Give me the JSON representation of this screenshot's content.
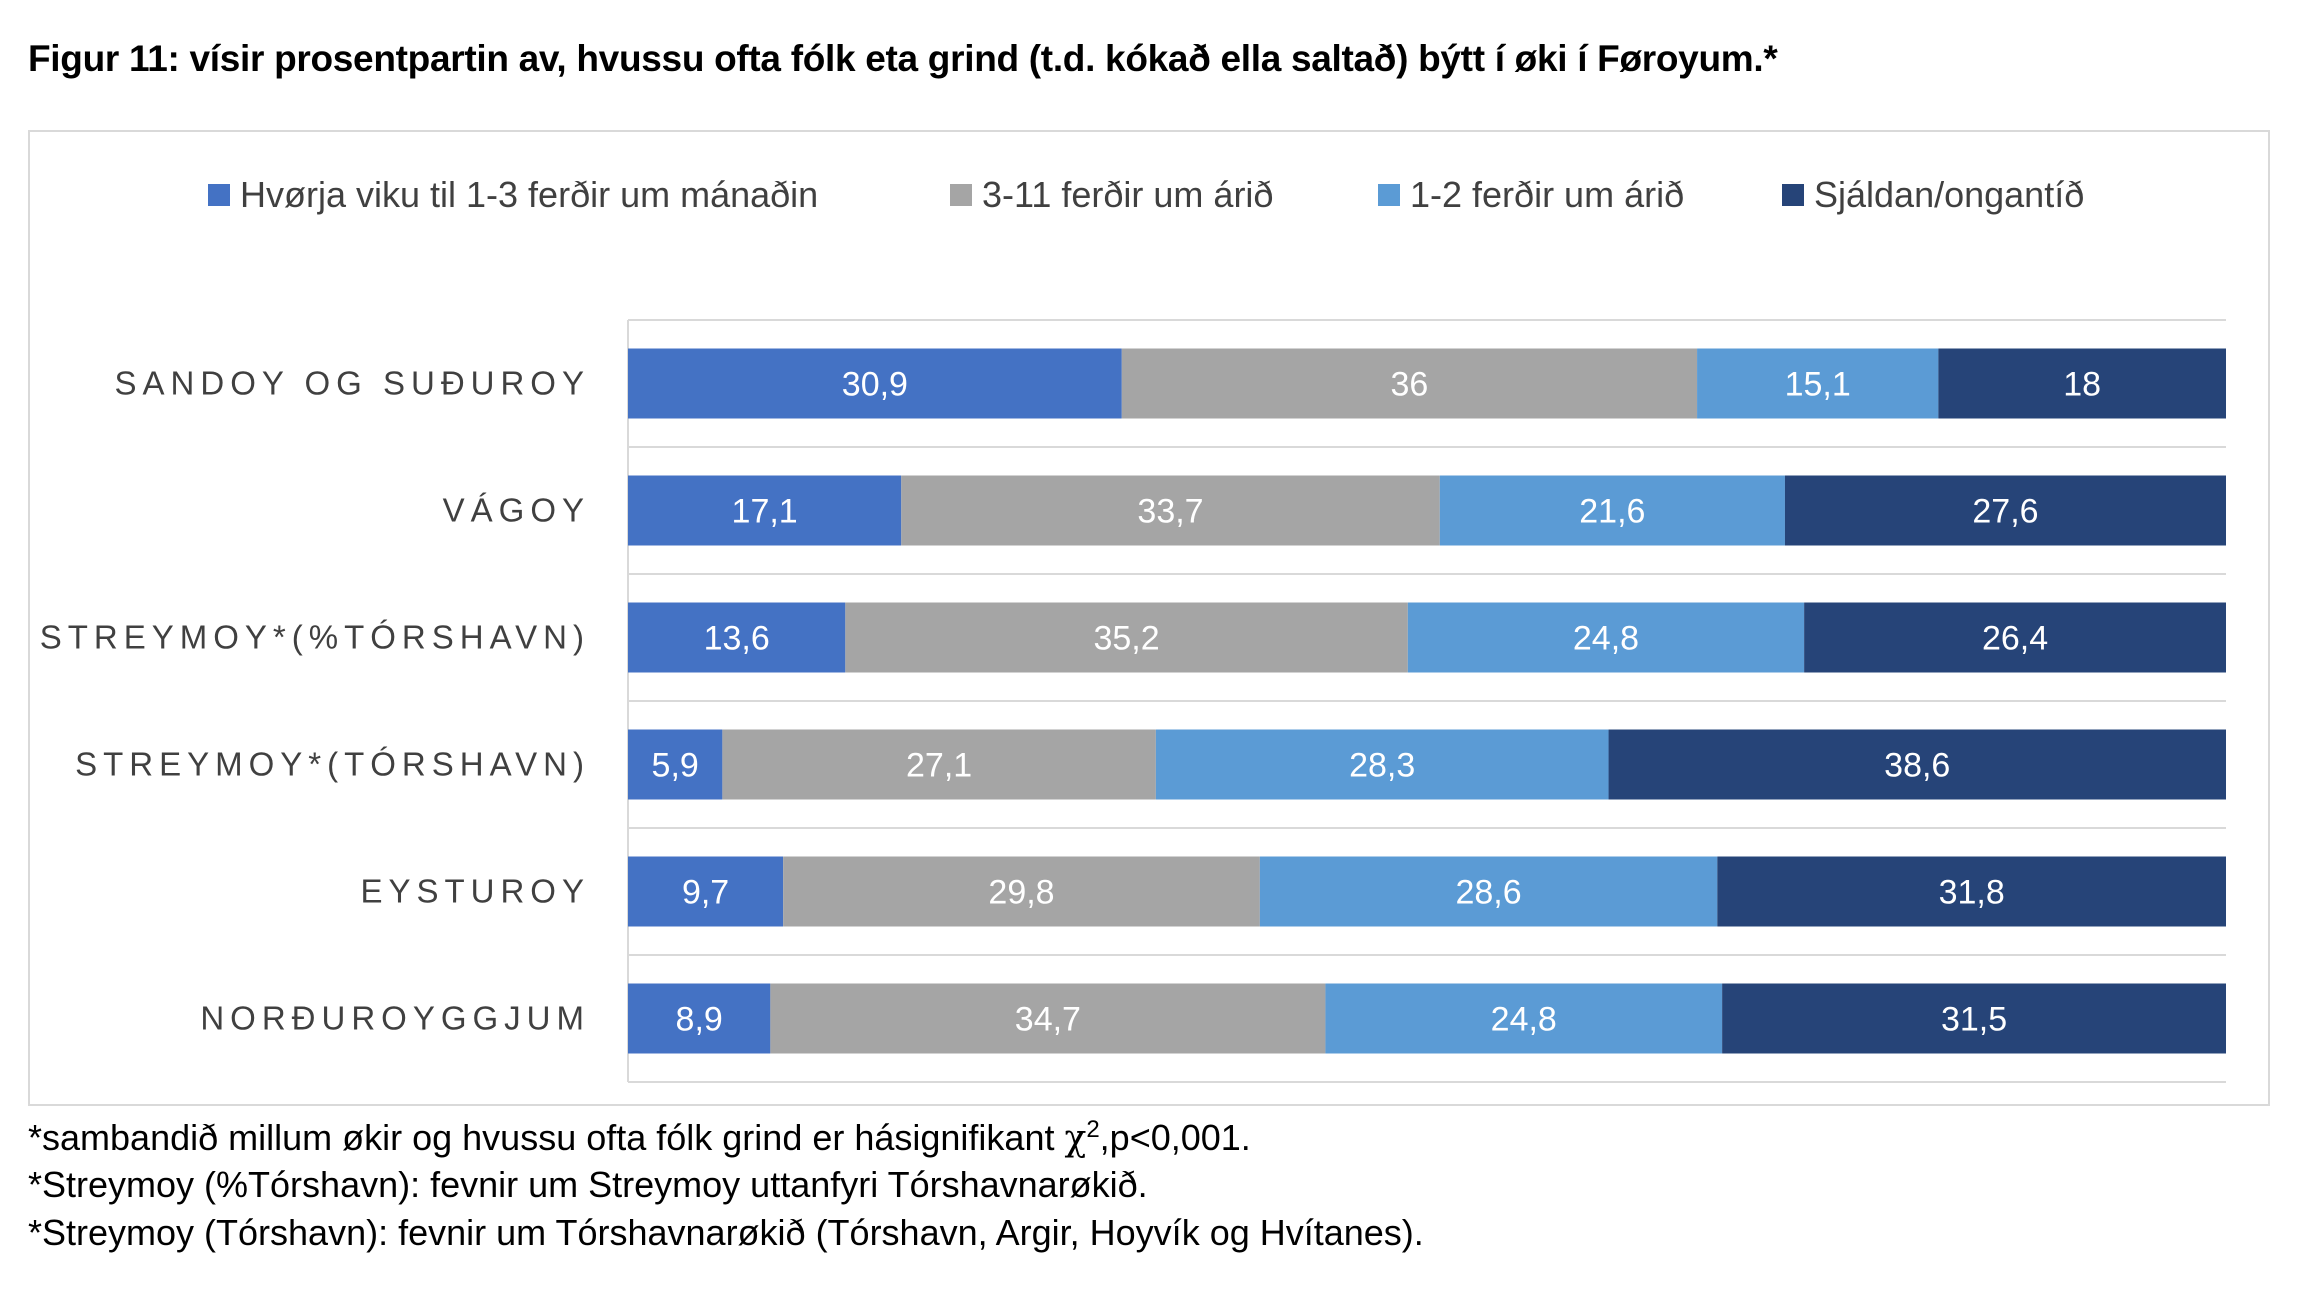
{
  "title": "Figur 11: vísir prosentpartin av, hvussu ofta fólk eta grind (t.d. kókað ella saltað) býtt í øki í Føroyum.*",
  "notes": {
    "line1_pre": "*sambandið millum økir og hvussu ofta fólk grind er hásignifikant ",
    "line1_chi": "χ",
    "line1_sup": "2",
    "line1_post": ",p<0,001.",
    "line2": "*Streymoy (%Tórshavn): fevnir um Streymoy uttanfyri Tórshavnarøkið.",
    "line3": "*Streymoy (Tórshavn): fevnir um Tórshavnarøkið (Tórshavn, Argir, Hoyvík og Hvítanes)."
  },
  "chart_data": {
    "type": "bar",
    "orientation": "horizontal",
    "stacked": true,
    "legend_position": "top",
    "grid": "horizontal separators between bars",
    "categories": [
      "SANDOY OG SUÐUROY",
      "VÁGOY",
      "STREYMOY*(%TÓRSHAVN)",
      "STREYMOY*(TÓRSHAVN)",
      "EYSTUROY",
      "NORÐUROYGGJUM"
    ],
    "series": [
      {
        "name": "Hvørja viku til 1-3 ferðir um mánaðin",
        "color": "#4472c4",
        "values": [
          30.9,
          17.1,
          13.6,
          5.9,
          9.7,
          8.9
        ],
        "labels": [
          "30,9",
          "17,1",
          "13,6",
          "5,9",
          "9,7",
          "8,9"
        ]
      },
      {
        "name": "3-11 ferðir um árið",
        "color": "#a5a5a5",
        "values": [
          36,
          33.7,
          35.2,
          27.1,
          29.8,
          34.7
        ],
        "labels": [
          "36",
          "33,7",
          "35,2",
          "27,1",
          "29,8",
          "34,7"
        ]
      },
      {
        "name": "1-2 ferðir um árið",
        "color": "#5b9bd5",
        "values": [
          15.1,
          21.6,
          24.8,
          28.3,
          28.6,
          24.8
        ],
        "labels": [
          "15,1",
          "21,6",
          "24,8",
          "28,3",
          "28,6",
          "24,8"
        ]
      },
      {
        "name": "Sjáldan/ongantíð",
        "color": "#264478",
        "values": [
          18,
          27.6,
          26.4,
          38.6,
          31.8,
          31.5
        ],
        "labels": [
          "18",
          "27,6",
          "26,4",
          "38,6",
          "31,8",
          "31,5"
        ]
      }
    ]
  }
}
